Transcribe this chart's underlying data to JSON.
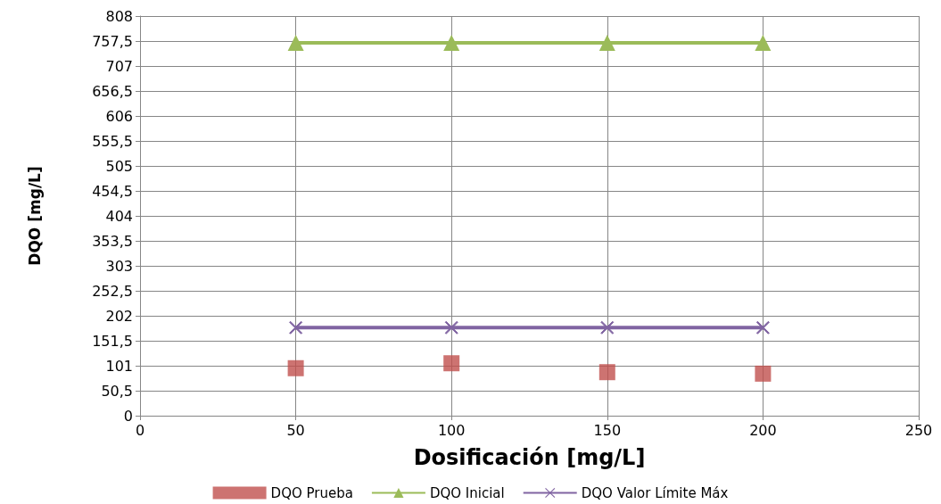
{
  "chart_data": {
    "type": "line",
    "xlabel": "Dosificación [mg/L]",
    "ylabel": "DQO [mg/L]",
    "x": [
      50,
      100,
      150,
      200
    ],
    "series": [
      {
        "name": "DQO Prueba",
        "type": "scatter",
        "marker": "square",
        "color": "#c0504d",
        "values": [
          96,
          106,
          88,
          85
        ]
      },
      {
        "name": "DQO Inicial",
        "marker": "triangle",
        "color": "#9bbb59",
        "values": [
          754,
          754,
          754,
          754
        ]
      },
      {
        "name": "DQO Valor Límite Máx",
        "marker": "cross",
        "color": "#8064a2",
        "values": [
          178,
          178,
          178,
          178
        ]
      }
    ],
    "xlim": [
      0,
      250
    ],
    "xticks": [
      0,
      50,
      100,
      150,
      200,
      250
    ],
    "ylim": [
      0,
      808
    ],
    "yticks": [
      0,
      {
        "value": 50.5,
        "label": "50,5"
      },
      101,
      {
        "value": 151.5,
        "label": "151,5"
      },
      202,
      {
        "value": 252.5,
        "label": "252,5"
      },
      303,
      {
        "value": 353.5,
        "label": "353,5"
      },
      404,
      {
        "value": 454.5,
        "label": "454,5"
      },
      505,
      {
        "value": 555.5,
        "label": "555,5"
      },
      606,
      {
        "value": 656.5,
        "label": "656,5"
      },
      707,
      {
        "value": 757.5,
        "label": "757,5"
      },
      808
    ],
    "grid": true,
    "legend": "bottom"
  }
}
